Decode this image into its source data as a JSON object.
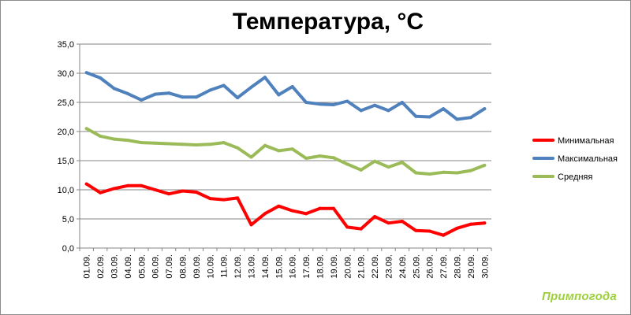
{
  "chart_data": {
    "type": "line",
    "title": "Температура, °C",
    "categories": [
      "01.09.",
      "02.09.",
      "03.09.",
      "04.09.",
      "05.09.",
      "06.09.",
      "07.09.",
      "08.09.",
      "09.09.",
      "10.09.",
      "11.09.",
      "12.09.",
      "13.09.",
      "14.09.",
      "15.09.",
      "16.09.",
      "17.09.",
      "18.09.",
      "19.09.",
      "20.09.",
      "21.09.",
      "22.09.",
      "23.09.",
      "24.09.",
      "25.09.",
      "26.09.",
      "27.09.",
      "28.09.",
      "29.09.",
      "30.09."
    ],
    "ylim": [
      0,
      35
    ],
    "yticks": [
      "0,0",
      "5,0",
      "10,0",
      "15,0",
      "20,0",
      "25,0",
      "30,0",
      "35,0"
    ],
    "grid": true,
    "legend_position": "right",
    "series": [
      {
        "name": "Минимальная",
        "color": "#ff0000",
        "values": [
          11.0,
          9.5,
          10.2,
          10.7,
          10.7,
          10.0,
          9.3,
          9.8,
          9.6,
          8.5,
          8.3,
          8.6,
          4.0,
          5.9,
          7.2,
          6.4,
          5.9,
          6.8,
          6.8,
          3.6,
          3.3,
          5.4,
          4.3,
          4.6,
          3.0,
          2.9,
          2.2,
          3.4,
          4.1,
          4.3
        ]
      },
      {
        "name": "Максимальная",
        "color": "#4f81bd",
        "values": [
          30.1,
          29.2,
          27.4,
          26.5,
          25.4,
          26.4,
          26.6,
          25.9,
          25.9,
          27.1,
          27.9,
          25.8,
          27.6,
          29.3,
          26.3,
          27.7,
          25.0,
          24.7,
          24.6,
          25.2,
          23.6,
          24.5,
          23.6,
          25.0,
          22.6,
          22.5,
          23.9,
          22.1,
          22.4,
          23.9
        ]
      },
      {
        "name": "Средняя",
        "color": "#9bbb59",
        "values": [
          20.5,
          19.2,
          18.7,
          18.5,
          18.1,
          18.0,
          17.9,
          17.8,
          17.7,
          17.8,
          18.1,
          17.2,
          15.6,
          17.6,
          16.7,
          17.0,
          15.4,
          15.8,
          15.5,
          14.4,
          13.4,
          14.9,
          13.9,
          14.7,
          12.9,
          12.7,
          13.0,
          12.9,
          13.3,
          14.2
        ]
      }
    ]
  },
  "brand": {
    "text": "Примпогода",
    "color": "#9ccf3a"
  }
}
